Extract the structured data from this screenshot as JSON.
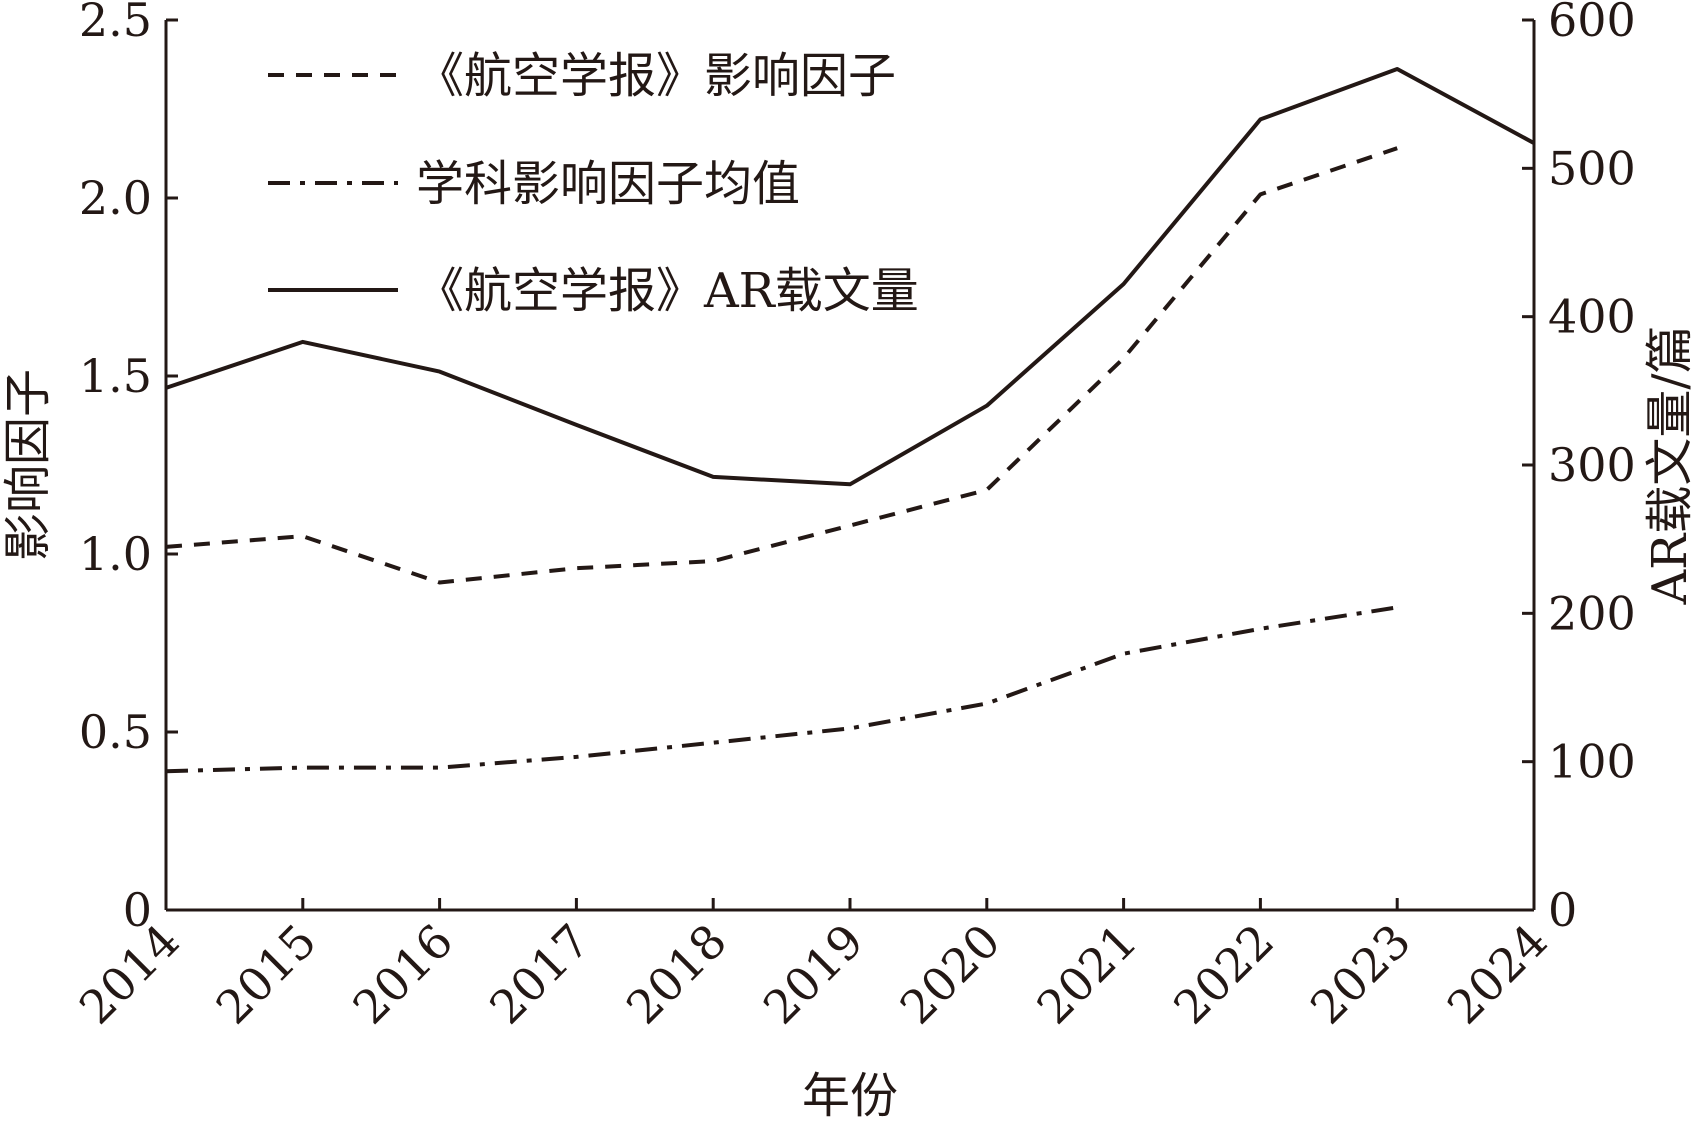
{
  "chart_data": {
    "type": "line",
    "xlabel": "年份",
    "ylabel": "影响因子",
    "y2label": "AR载文量/篇",
    "x": [
      2014,
      2015,
      2016,
      2017,
      2018,
      2019,
      2020,
      2021,
      2022,
      2023,
      2024
    ],
    "x_tick_labels": [
      "2014",
      "2015",
      "2016",
      "2017",
      "2018",
      "2019",
      "2020",
      "2021",
      "2022",
      "2023",
      "2024"
    ],
    "ylim": [
      0,
      2.5
    ],
    "y_ticks": [
      0,
      0.5,
      1.0,
      1.5,
      2.0,
      2.5
    ],
    "y_tick_labels": [
      "0",
      "0.5",
      "1.0",
      "1.5",
      "2.0",
      "2.5"
    ],
    "y2lim": [
      0,
      600
    ],
    "y2_ticks": [
      0,
      100,
      200,
      300,
      400,
      500,
      600
    ],
    "y2_tick_labels": [
      "0",
      "100",
      "200",
      "300",
      "400",
      "500",
      "600"
    ],
    "legend_position": "top-left",
    "grid": false,
    "series": [
      {
        "name": "《航空学报》影响因子",
        "axis": "left",
        "style": "dashed",
        "x": [
          2014,
          2015,
          2016,
          2017,
          2018,
          2019,
          2020,
          2021,
          2022,
          2023
        ],
        "values": [
          1.02,
          1.05,
          0.92,
          0.96,
          0.98,
          1.08,
          1.18,
          1.55,
          2.01,
          2.14
        ]
      },
      {
        "name": "学科影响因子均值",
        "axis": "left",
        "style": "dashdot",
        "x": [
          2014,
          2015,
          2016,
          2017,
          2018,
          2019,
          2020,
          2021,
          2022,
          2023
        ],
        "values": [
          0.39,
          0.4,
          0.4,
          0.43,
          0.47,
          0.51,
          0.58,
          0.72,
          0.79,
          0.85
        ]
      },
      {
        "name": "《航空学报》AR载文量",
        "axis": "right",
        "style": "solid",
        "x": [
          2014,
          2015,
          2016,
          2017,
          2018,
          2019,
          2020,
          2021,
          2022,
          2023,
          2024
        ],
        "values": [
          352,
          383,
          363,
          327,
          292,
          287,
          340,
          422,
          533,
          567,
          517
        ]
      }
    ]
  }
}
